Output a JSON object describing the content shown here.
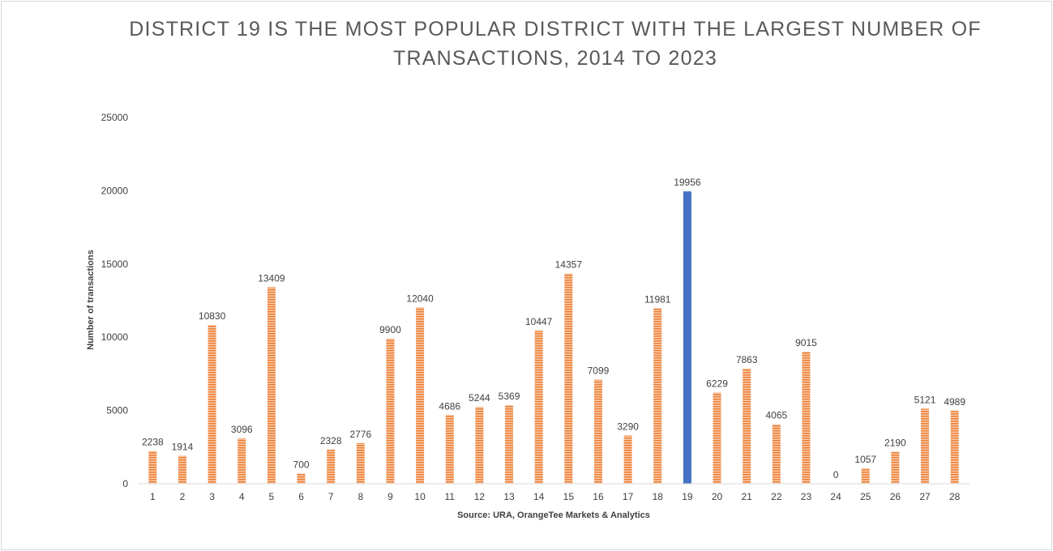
{
  "chart_data": {
    "type": "bar",
    "title_line1": "DISTRICT 19 IS THE MOST POPULAR DISTRICT WITH THE LARGEST NUMBER OF",
    "title_line2": "TRANSACTIONS, 2014 TO 2023",
    "ylabel": "Number of transactions",
    "xlabel": "Source: URA, OrangeTee Markets & Analytics",
    "ylim": [
      0,
      25000
    ],
    "yticks": [
      0,
      5000,
      10000,
      15000,
      20000,
      25000
    ],
    "categories": [
      "1",
      "2",
      "3",
      "4",
      "5",
      "6",
      "7",
      "8",
      "9",
      "10",
      "11",
      "12",
      "13",
      "14",
      "15",
      "16",
      "17",
      "18",
      "19",
      "20",
      "21",
      "22",
      "23",
      "24",
      "25",
      "26",
      "27",
      "28"
    ],
    "values": [
      2238,
      1914,
      10830,
      3096,
      13409,
      700,
      2328,
      2776,
      9900,
      12040,
      4686,
      5244,
      5369,
      10447,
      14357,
      7099,
      3290,
      11981,
      19956,
      6229,
      7863,
      4065,
      9015,
      0,
      1057,
      2190,
      5121,
      4989
    ],
    "highlight_category": "19",
    "colors": {
      "bar": "#ed7d31",
      "highlight": "#4472c4",
      "axis": "#d9d9d9",
      "text": "#404040",
      "title": "#595959"
    },
    "grid": false,
    "legend": "none"
  }
}
